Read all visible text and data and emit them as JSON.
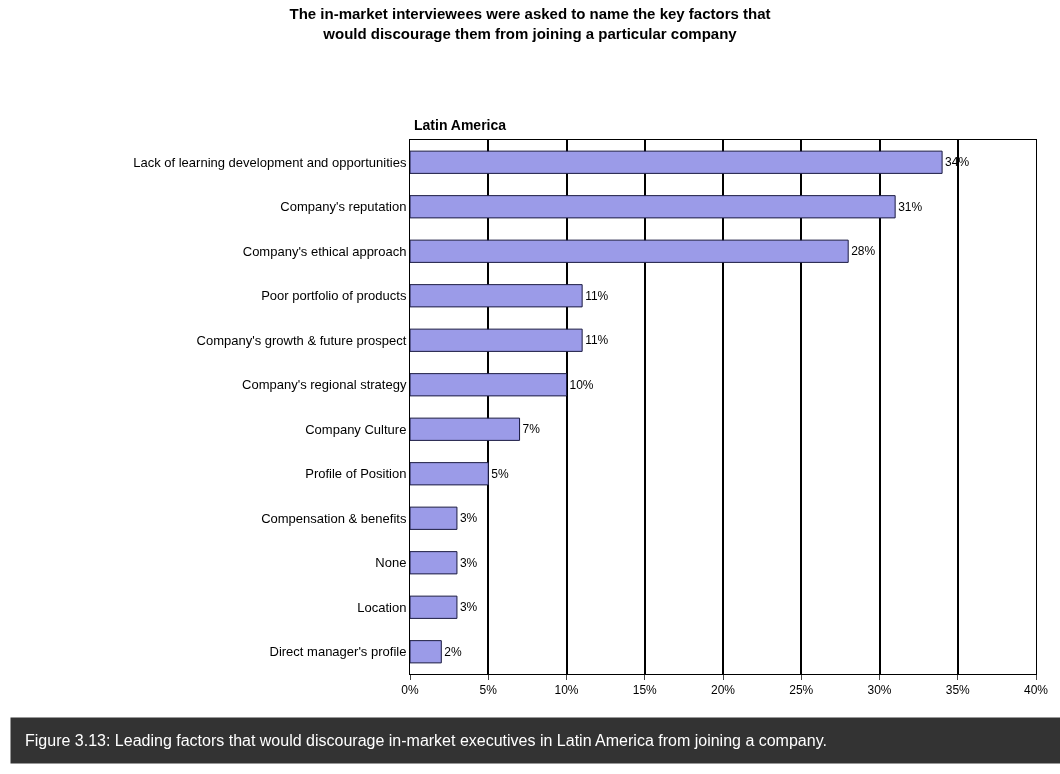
{
  "chart_data": {
    "type": "bar",
    "orientation": "horizontal",
    "title": "The in-market interviewees were asked to name the key factors that\nwould discourage them from joining a particular company",
    "subtitle": "Latin America",
    "categories": [
      "Lack of learning development and opportunities",
      "Company's reputation",
      "Company's ethical approach",
      "Poor portfolio of products",
      "Company's growth & future prospect",
      "Company's regional strategy",
      "Company Culture",
      "Profile of Position",
      "Compensation & benefits",
      "None",
      "Location",
      "Direct manager's profile"
    ],
    "values": [
      34,
      31,
      28,
      11,
      11,
      10,
      7,
      5,
      3,
      3,
      3,
      2
    ],
    "value_labels": [
      "34%",
      "31%",
      "28%",
      "11%",
      "11%",
      "10%",
      "7%",
      "5%",
      "3%",
      "3%",
      "3%",
      "2%"
    ],
    "color": "#9b9be8",
    "xlim": [
      0,
      40
    ],
    "xticks": [
      {
        "value": 0,
        "label": "0%"
      },
      {
        "value": 5,
        "label": "5%"
      },
      {
        "value": 10,
        "label": "10%"
      },
      {
        "value": 15,
        "label": "15%"
      },
      {
        "value": 20,
        "label": "20%"
      },
      {
        "value": 25,
        "label": "25%"
      },
      {
        "value": 30,
        "label": "30%"
      },
      {
        "value": 35,
        "label": "35%"
      },
      {
        "value": 40,
        "label": "40%"
      }
    ],
    "grid": "x",
    "legend": false,
    "annotations": [
      "Figure 3.13: Leading factors that would discourage in-market executives in Latin America from joining a company."
    ]
  }
}
